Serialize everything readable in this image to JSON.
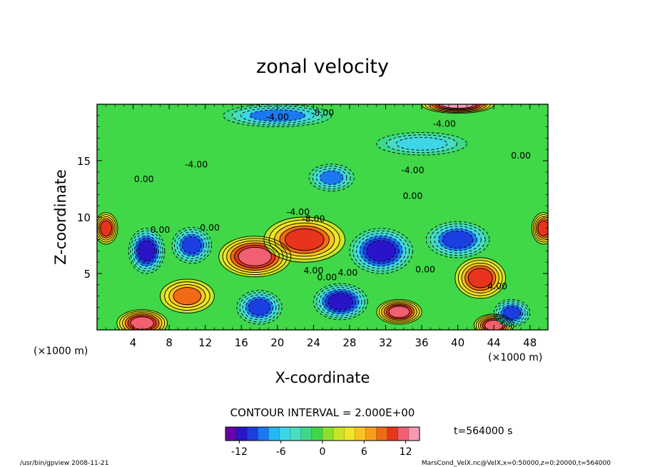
{
  "chart_data": {
    "type": "heatmap",
    "title": "zonal velocity",
    "xlabel": "X-coordinate",
    "ylabel": "Z-coordinate",
    "x_unit_label": "(×1000 m)",
    "x_unit_label_right": "(×1000 m)",
    "xlim": [
      0,
      50
    ],
    "ylim": [
      0,
      20
    ],
    "x_ticks": [
      4,
      8,
      12,
      16,
      20,
      24,
      28,
      32,
      36,
      40,
      44,
      48
    ],
    "y_ticks": [
      5,
      10,
      15
    ],
    "grid": false,
    "contour_interval_label": "CONTOUR INTERVAL = 2.000E+00",
    "contour_labels": [
      {
        "text": "-8.00",
        "x": 25.0,
        "z": 19.0
      },
      {
        "text": "-4.00",
        "x": 20.0,
        "z": 18.6
      },
      {
        "text": "-4.00",
        "x": 38.5,
        "z": 18.0
      },
      {
        "text": "0.00",
        "x": 47.0,
        "z": 15.2
      },
      {
        "text": "-4.00",
        "x": 11.0,
        "z": 14.4
      },
      {
        "text": "-4.00",
        "x": 35.0,
        "z": 13.9
      },
      {
        "text": "0.00",
        "x": 5.2,
        "z": 13.1
      },
      {
        "text": "0.00",
        "x": 35.0,
        "z": 11.6
      },
      {
        "text": "-4.00",
        "x": 22.3,
        "z": 10.2
      },
      {
        "text": "-8.00",
        "x": 24.0,
        "z": 9.6
      },
      {
        "text": "0.00",
        "x": 7.0,
        "z": 8.6
      },
      {
        "text": "0.00",
        "x": 12.5,
        "z": 8.8
      },
      {
        "text": "4.00",
        "x": 24.0,
        "z": 5.0
      },
      {
        "text": "0.00",
        "x": 25.5,
        "z": 4.4
      },
      {
        "text": "4.00",
        "x": 27.8,
        "z": 4.8
      },
      {
        "text": "0.00",
        "x": 36.4,
        "z": 5.1
      },
      {
        "text": "4.00",
        "x": 44.4,
        "z": 3.6
      }
    ],
    "field_features": [
      {
        "kind": "jet",
        "value": 12,
        "x": 17.5,
        "z": 6.5,
        "sx": 4.0,
        "sz": 1.8
      },
      {
        "kind": "jet",
        "value": 10,
        "x": 23.0,
        "z": 8.0,
        "sx": 4.5,
        "sz": 2.0
      },
      {
        "kind": "jet",
        "value": 12,
        "x": 5.0,
        "z": 0.6,
        "sx": 2.8,
        "sz": 1.2
      },
      {
        "kind": "jet",
        "value": 12,
        "x": 33.5,
        "z": 1.6,
        "sx": 2.5,
        "sz": 1.1
      },
      {
        "kind": "jet",
        "value": 10,
        "x": 42.5,
        "z": 4.6,
        "sx": 2.8,
        "sz": 1.8
      },
      {
        "kind": "jet",
        "value": 12,
        "x": 44.0,
        "z": 0.4,
        "sx": 2.2,
        "sz": 1.0
      },
      {
        "kind": "jet",
        "value": 8,
        "x": 10.0,
        "z": 3.0,
        "sx": 3.0,
        "sz": 1.5
      },
      {
        "kind": "jet",
        "value": 10,
        "x": 1.0,
        "z": 9.0,
        "sx": 1.3,
        "sz": 1.4
      },
      {
        "kind": "jet",
        "value": 10,
        "x": 49.5,
        "z": 9.0,
        "sx": 1.3,
        "sz": 1.4
      },
      {
        "kind": "jet",
        "value": 14,
        "x": 40.0,
        "z": 20.0,
        "sx": 4.0,
        "sz": 0.8
      },
      {
        "kind": "core",
        "value": -12,
        "x": 5.5,
        "z": 7.0,
        "sx": 2.0,
        "sz": 2.0
      },
      {
        "kind": "core",
        "value": -10,
        "x": 10.5,
        "z": 7.5,
        "sx": 2.2,
        "sz": 1.6
      },
      {
        "kind": "core",
        "value": -12,
        "x": 31.5,
        "z": 7.0,
        "sx": 3.5,
        "sz": 2.0
      },
      {
        "kind": "core",
        "value": -12,
        "x": 27.0,
        "z": 2.5,
        "sx": 3.0,
        "sz": 1.6
      },
      {
        "kind": "core",
        "value": -10,
        "x": 40.0,
        "z": 8.0,
        "sx": 3.5,
        "sz": 1.6
      },
      {
        "kind": "core",
        "value": -10,
        "x": 46.0,
        "z": 1.5,
        "sx": 2.0,
        "sz": 1.2
      },
      {
        "kind": "core",
        "value": -8,
        "x": 26.0,
        "z": 13.5,
        "sx": 2.5,
        "sz": 1.2
      },
      {
        "kind": "core",
        "value": -10,
        "x": 18.0,
        "z": 2.0,
        "sx": 2.5,
        "sz": 1.5
      },
      {
        "kind": "core",
        "value": -8,
        "x": 20.0,
        "z": 19.0,
        "sx": 6.0,
        "sz": 1.0
      },
      {
        "kind": "core",
        "value": -6,
        "x": 36.0,
        "z": 16.5,
        "sx": 5.0,
        "sz": 1.0
      }
    ],
    "colorbar": {
      "min": -14,
      "max": 14,
      "ticks": [
        -12,
        -6,
        0,
        6,
        12
      ],
      "colors": [
        "#6a00a8",
        "#2a14c8",
        "#1a3ee0",
        "#1c78f0",
        "#24b8f4",
        "#3ed6e6",
        "#48dcc0",
        "#3ed888",
        "#40d848",
        "#8ce02c",
        "#c8e628",
        "#f0e628",
        "#f8c420",
        "#f89c1c",
        "#f06a18",
        "#e8341c",
        "#f06070",
        "#f59ab2"
      ]
    }
  },
  "time_label": "t=564000 s",
  "footer": {
    "left": "/usr/bin/gpview   2008-11-21",
    "right": "MarsCond_VelX.nc@VelX,x=0:50000,z=0:20000,t=564000"
  }
}
